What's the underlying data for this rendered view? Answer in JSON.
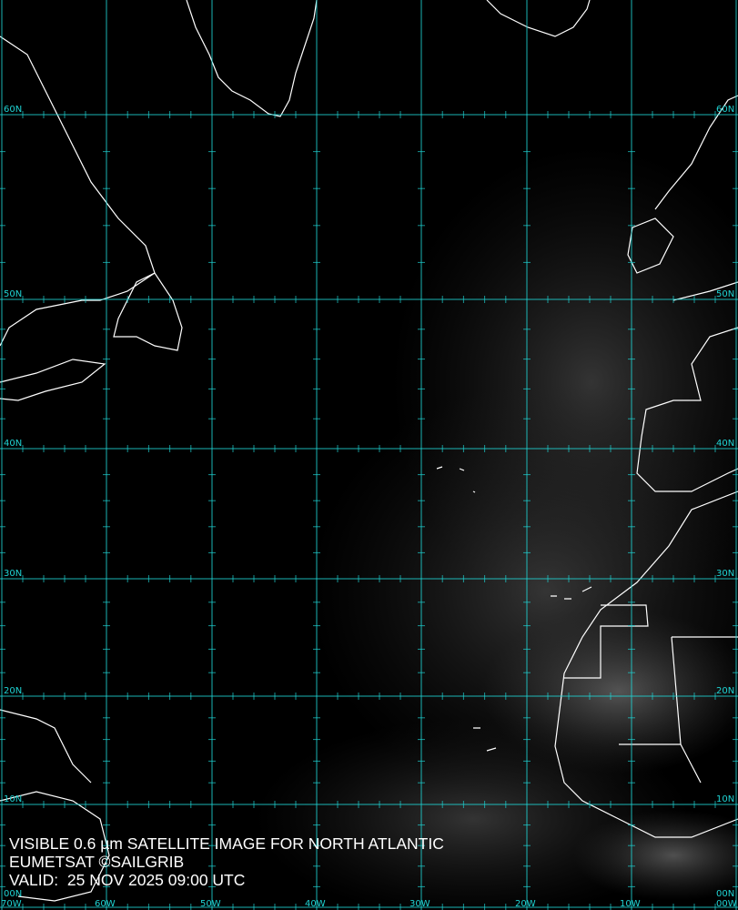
{
  "caption": {
    "title": "VISIBLE 0.6 µm SATELLITE IMAGE FOR NORTH ATLANTIC",
    "credit": "EUMETSAT ©SAILGRIB",
    "valid": "VALID:  25 NOV 2025 09:00 UTC"
  },
  "grid": {
    "color": "#1fd3d3",
    "latitudes": [
      {
        "label": "60N"
      },
      {
        "label": "50N"
      },
      {
        "label": "40N"
      },
      {
        "label": "30N"
      },
      {
        "label": "20N"
      },
      {
        "label": "10N"
      },
      {
        "label": "00N"
      }
    ],
    "longitudes": [
      {
        "label": "70W"
      },
      {
        "label": "60W"
      },
      {
        "label": "50W"
      },
      {
        "label": "40W"
      },
      {
        "label": "30W"
      },
      {
        "label": "20W"
      },
      {
        "label": "10W"
      },
      {
        "label": "00W"
      }
    ]
  },
  "coastline_color": "#ffffff"
}
